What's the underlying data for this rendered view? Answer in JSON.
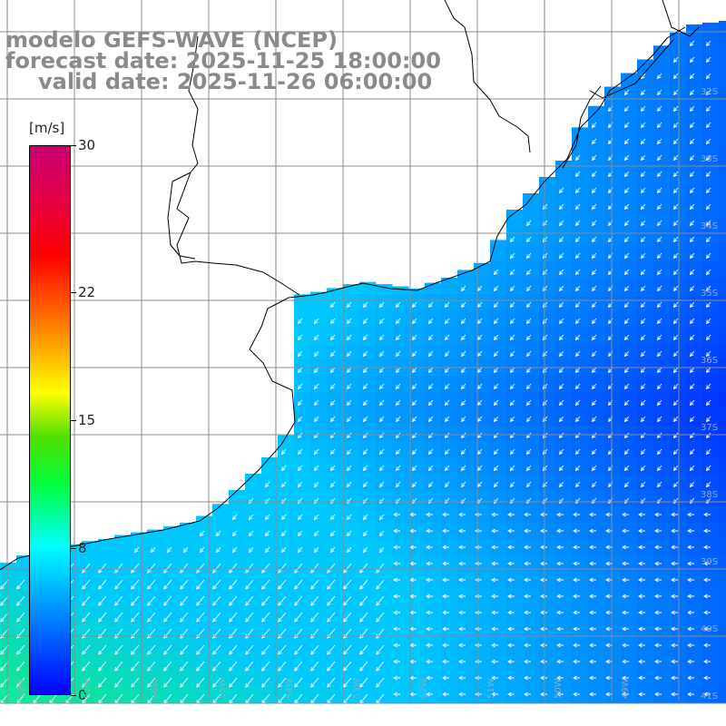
{
  "header": {
    "line1": "modelo GEFS-WAVE (NCEP)",
    "line2": "forecast date: 2025-11-25 18:00:00",
    "line3": "valid date: 2025-11-26 06:00:00"
  },
  "colorbar": {
    "unit": "[m/s]",
    "min": 0,
    "max": 30,
    "ticks": [
      "30",
      "22",
      "15",
      "8",
      "0"
    ],
    "tick_values": [
      30,
      22,
      15,
      8,
      0
    ]
  },
  "lat_labels": [
    "32S",
    "33S",
    "34S",
    "35S",
    "36S",
    "37S",
    "38S",
    "39S",
    "40S",
    "41S"
  ],
  "lon_labels": [
    "58W",
    "57W",
    "56W",
    "55W",
    "54W",
    "53W",
    "52W",
    "51W",
    "50W",
    "49W"
  ],
  "colors": {
    "land": "#ffffff",
    "grid": "#8c8c8c",
    "coast": "#000000",
    "arrows": "#ffffff"
  }
}
